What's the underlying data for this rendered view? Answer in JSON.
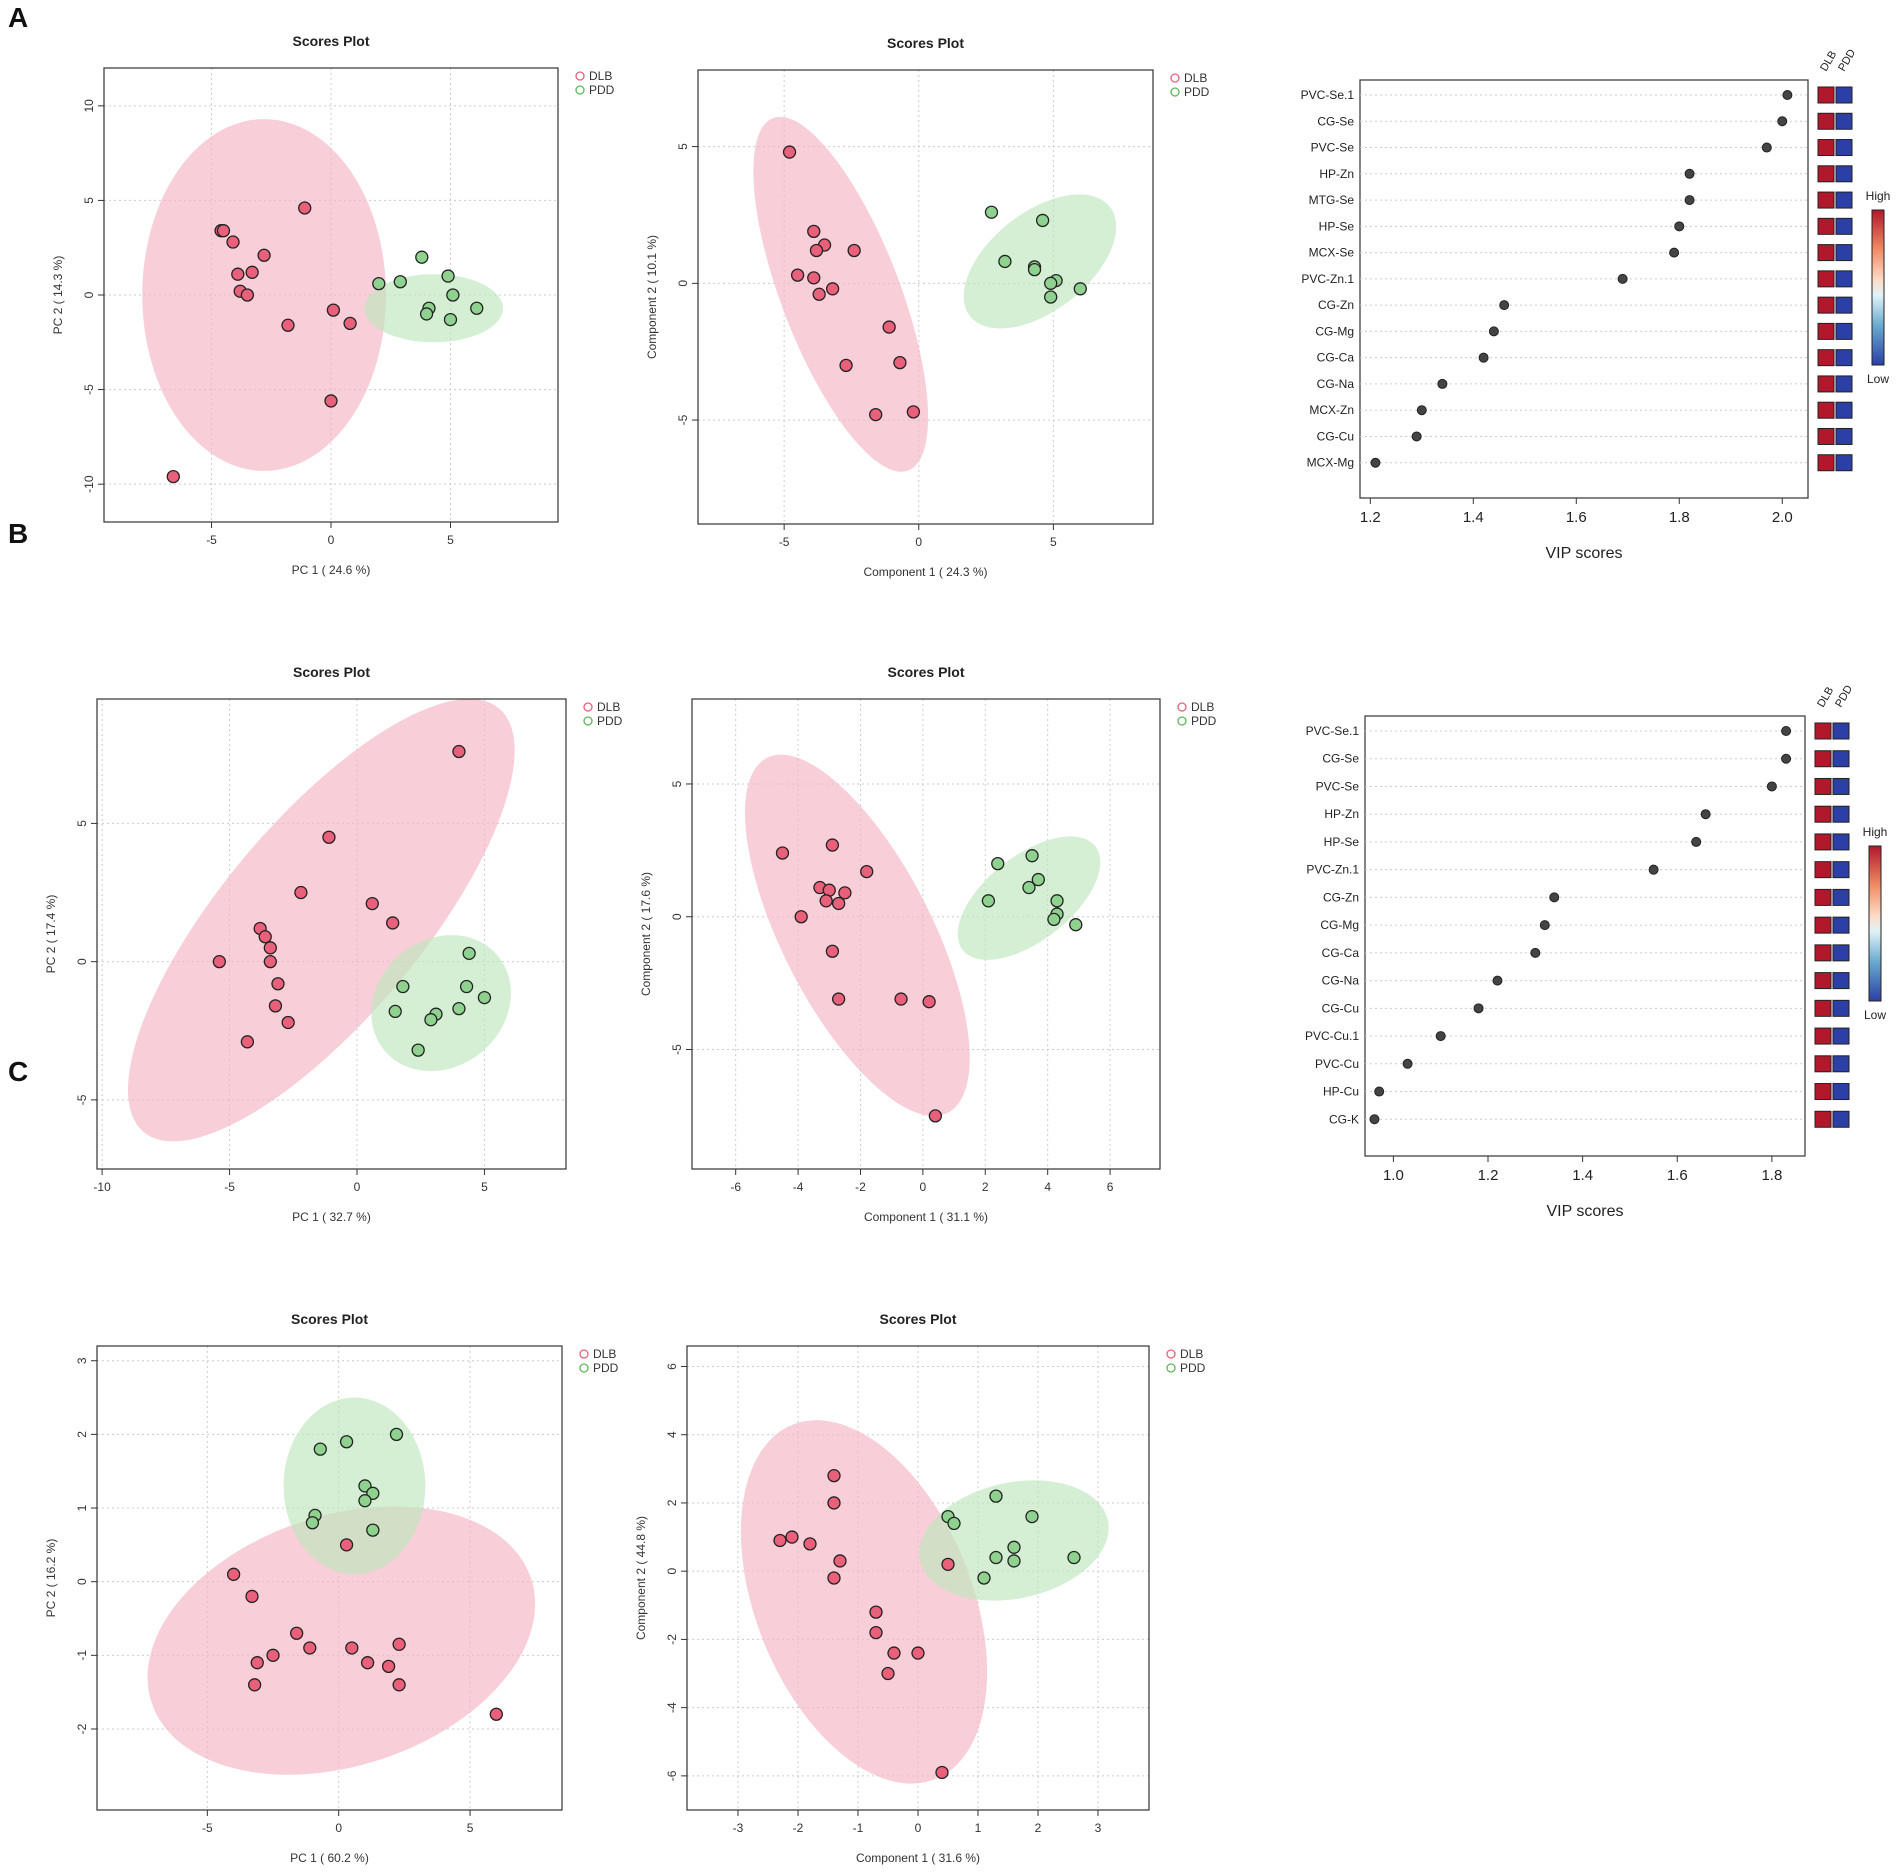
{
  "panel_labels": [
    "A",
    "B",
    "C"
  ],
  "colors": {
    "dlb_fill": "#e8607a",
    "dlb_ellipse": "#f4b6c3",
    "pdd_fill": "#8fd18f",
    "pdd_ellipse": "#bfe6bf",
    "point_stroke": "#222222",
    "vip_point": "#444444",
    "heat_high": "#b2182b",
    "heat_low": "#2c3fa6",
    "grid": "#cccccc"
  },
  "chart_data": [
    {
      "id": "A-pca",
      "type": "scatter",
      "title": "Scores Plot",
      "xlabel": "PC 1 ( 24.6 %)",
      "ylabel": "PC 2 ( 14.3 %)",
      "xlim": [
        -9.5,
        9.5
      ],
      "ylim": [
        -12,
        12
      ],
      "xticks": [
        -5,
        0,
        5
      ],
      "yticks": [
        -10,
        -5,
        0,
        5,
        10
      ],
      "legend": [
        "DLB",
        "PDD"
      ],
      "series": [
        {
          "name": "DLB",
          "points": [
            [
              -4.6,
              3.4
            ],
            [
              -4.5,
              3.4
            ],
            [
              -4.1,
              2.8
            ],
            [
              -2.8,
              2.1
            ],
            [
              -3.9,
              1.1
            ],
            [
              -3.3,
              1.2
            ],
            [
              -3.8,
              0.2
            ],
            [
              -3.5,
              0.0
            ],
            [
              -1.1,
              4.6
            ],
            [
              -1.8,
              -1.6
            ],
            [
              0.1,
              -0.8
            ],
            [
              0.8,
              -1.5
            ],
            [
              0,
              -5.6
            ],
            [
              -6.6,
              -9.6
            ]
          ],
          "ellipse": {
            "cx": -2.8,
            "cy": 0,
            "rx": 5.1,
            "ry": 9.3,
            "angle": 0
          }
        },
        {
          "name": "PDD",
          "points": [
            [
              2,
              0.6
            ],
            [
              2.9,
              0.7
            ],
            [
              3.8,
              2.0
            ],
            [
              4.9,
              1.0
            ],
            [
              5.1,
              0
            ],
            [
              4.1,
              -0.7
            ],
            [
              4.0,
              -1.0
            ],
            [
              5.0,
              -1.3
            ],
            [
              6.1,
              -0.7
            ]
          ],
          "ellipse": {
            "cx": 4.3,
            "cy": -0.7,
            "rx": 2.9,
            "ry": 1.8,
            "angle": 0
          }
        }
      ]
    },
    {
      "id": "A-plsda",
      "type": "scatter",
      "title": "Scores Plot",
      "xlabel": "Component 1 ( 24.3 %)",
      "ylabel": "Component 2 ( 10.1 %)",
      "xlim": [
        -8.2,
        8.7
      ],
      "ylim": [
        -8.8,
        7.8
      ],
      "xticks": [
        -5,
        0,
        5
      ],
      "yticks": [
        -5,
        0,
        5
      ],
      "legend": [
        "DLB",
        "PDD"
      ],
      "series": [
        {
          "name": "DLB",
          "points": [
            [
              -4.8,
              4.8
            ],
            [
              -3.9,
              1.9
            ],
            [
              -3.5,
              1.4
            ],
            [
              -3.8,
              1.2
            ],
            [
              -2.4,
              1.2
            ],
            [
              -4.5,
              0.3
            ],
            [
              -3.9,
              0.2
            ],
            [
              -3.2,
              -0.2
            ],
            [
              -3.7,
              -0.4
            ],
            [
              -1.1,
              -1.6
            ],
            [
              -0.7,
              -2.9
            ],
            [
              -2.7,
              -3.0
            ],
            [
              -1.6,
              -4.8
            ],
            [
              -0.2,
              -4.7
            ]
          ],
          "ellipse": {
            "cx": -2.9,
            "cy": -0.4,
            "rx": 2.2,
            "ry": 6.9,
            "angle": -21
          }
        },
        {
          "name": "PDD",
          "points": [
            [
              2.7,
              2.6
            ],
            [
              4.6,
              2.3
            ],
            [
              3.2,
              0.8
            ],
            [
              4.3,
              0.6
            ],
            [
              4.3,
              0.5
            ],
            [
              5.1,
              0.1
            ],
            [
              4.9,
              0.0
            ],
            [
              6.0,
              -0.2
            ],
            [
              4.9,
              -0.5
            ]
          ],
          "ellipse": {
            "cx": 4.5,
            "cy": 0.8,
            "rx": 3.3,
            "ry": 1.8,
            "angle": -38
          }
        }
      ]
    },
    {
      "id": "A-vip",
      "type": "dot",
      "xlabel": "VIP scores",
      "xlim": [
        1.18,
        2.05
      ],
      "xticks": [
        "1.2",
        "1.4",
        "1.6",
        "1.8",
        "2.0"
      ],
      "groups": [
        "DLB",
        "PDD"
      ],
      "scale_high": "High",
      "scale_low": "Low",
      "features": [
        "PVC-Se.1",
        "CG-Se",
        "PVC-Se",
        "HP-Zn",
        "MTG-Se",
        "HP-Se",
        "MCX-Se",
        "PVC-Zn.1",
        "CG-Zn",
        "CG-Mg",
        "CG-Ca",
        "CG-Na",
        "MCX-Zn",
        "CG-Cu",
        "MCX-Mg"
      ],
      "values": [
        2.01,
        2.0,
        1.97,
        1.82,
        1.82,
        1.8,
        1.79,
        1.69,
        1.46,
        1.44,
        1.42,
        1.34,
        1.3,
        1.29,
        1.21
      ]
    },
    {
      "id": "B-pca",
      "type": "scatter",
      "title": "Scores Plot",
      "xlabel": "PC 1 ( 32.7 %)",
      "ylabel": "PC 2 ( 17.4 %)",
      "xlim": [
        -10.2,
        8.2
      ],
      "ylim": [
        -7.5,
        9.5
      ],
      "xticks": [
        -10,
        -5,
        0,
        5
      ],
      "yticks": [
        -5,
        0,
        5
      ],
      "legend": [
        "DLB",
        "PDD"
      ],
      "series": [
        {
          "name": "DLB",
          "points": [
            [
              4.0,
              7.6
            ],
            [
              -1.1,
              4.5
            ],
            [
              -2.2,
              2.5
            ],
            [
              0.6,
              2.1
            ],
            [
              1.4,
              1.4
            ],
            [
              -3.8,
              1.2
            ],
            [
              -3.6,
              0.9
            ],
            [
              -3.4,
              0.5
            ],
            [
              -5.4,
              0
            ],
            [
              -3.4,
              0
            ],
            [
              -3.1,
              -0.8
            ],
            [
              -3.2,
              -1.6
            ],
            [
              -2.7,
              -2.2
            ],
            [
              -4.3,
              -2.9
            ]
          ],
          "ellipse": {
            "cx": -1.4,
            "cy": 1.5,
            "rx": 3.9,
            "ry": 10.0,
            "angle": 40
          }
        },
        {
          "name": "PDD",
          "points": [
            [
              4.4,
              0.3
            ],
            [
              1.8,
              -0.9
            ],
            [
              4.3,
              -0.9
            ],
            [
              5.0,
              -1.3
            ],
            [
              4.0,
              -1.7
            ],
            [
              3.1,
              -1.9
            ],
            [
              1.5,
              -1.8
            ],
            [
              2.9,
              -2.1
            ],
            [
              2.4,
              -3.2
            ]
          ],
          "ellipse": {
            "cx": 3.3,
            "cy": -1.5,
            "rx": 2.9,
            "ry": 2.3,
            "angle": -40
          }
        }
      ]
    },
    {
      "id": "B-plsda",
      "type": "scatter",
      "title": "Scores Plot",
      "xlabel": "Component 1 ( 31.1 %)",
      "ylabel": "Component 2 ( 17.6 %)",
      "xlim": [
        -7.4,
        7.6
      ],
      "ylim": [
        -9.5,
        8.2
      ],
      "xticks": [
        -6,
        -4,
        -2,
        0,
        2,
        4,
        6
      ],
      "yticks": [
        -5,
        0,
        5
      ],
      "legend": [
        "DLB",
        "PDD"
      ],
      "series": [
        {
          "name": "DLB",
          "points": [
            [
              -4.5,
              2.4
            ],
            [
              -2.9,
              2.7
            ],
            [
              -1.8,
              1.7
            ],
            [
              -3.3,
              1.1
            ],
            [
              -3.0,
              1.0
            ],
            [
              -2.5,
              0.9
            ],
            [
              -3.1,
              0.6
            ],
            [
              -2.7,
              0.5
            ],
            [
              -3.9,
              0.0
            ],
            [
              -2.9,
              -1.3
            ],
            [
              -2.7,
              -3.1
            ],
            [
              -0.7,
              -3.1
            ],
            [
              0.2,
              -3.2
            ],
            [
              0.4,
              -7.5
            ]
          ],
          "ellipse": {
            "cx": -2.1,
            "cy": -0.7,
            "rx": 2.4,
            "ry": 7.5,
            "angle": -27
          }
        },
        {
          "name": "PDD",
          "points": [
            [
              2.4,
              2.0
            ],
            [
              3.5,
              2.3
            ],
            [
              2.1,
              0.6
            ],
            [
              3.4,
              1.1
            ],
            [
              3.7,
              1.4
            ],
            [
              4.3,
              0.6
            ],
            [
              4.3,
              0.1
            ],
            [
              4.2,
              -0.1
            ],
            [
              4.9,
              -0.3
            ]
          ],
          "ellipse": {
            "cx": 3.4,
            "cy": 0.7,
            "rx": 2.7,
            "ry": 1.6,
            "angle": -38
          }
        }
      ]
    },
    {
      "id": "B-vip",
      "type": "dot",
      "xlabel": "VIP scores",
      "xlim": [
        0.94,
        1.87
      ],
      "xticks": [
        "1.0",
        "1.2",
        "1.4",
        "1.6",
        "1.8"
      ],
      "groups": [
        "DLB",
        "PDD"
      ],
      "scale_high": "High",
      "scale_low": "Low",
      "features": [
        "PVC-Se.1",
        "CG-Se",
        "PVC-Se",
        "HP-Zn",
        "HP-Se",
        "PVC-Zn.1",
        "CG-Zn",
        "CG-Mg",
        "CG-Ca",
        "CG-Na",
        "CG-Cu",
        "PVC-Cu.1",
        "PVC-Cu",
        "HP-Cu",
        "CG-K"
      ],
      "values": [
        1.83,
        1.83,
        1.8,
        1.66,
        1.64,
        1.55,
        1.34,
        1.32,
        1.3,
        1.22,
        1.18,
        1.1,
        1.03,
        0.97,
        0.96
      ]
    },
    {
      "id": "C-pca",
      "type": "scatter",
      "title": "Scores Plot",
      "xlabel": "PC 1 ( 60.2 %)",
      "ylabel": "PC 2 ( 16.2 %)",
      "xlim": [
        -9.2,
        8.5
      ],
      "ylim": [
        -3.1,
        3.2
      ],
      "xticks": [
        -5,
        0,
        5
      ],
      "yticks": [
        -2,
        -1,
        0,
        1,
        2,
        3
      ],
      "legend": [
        "DLB",
        "PDD"
      ],
      "series": [
        {
          "name": "DLB",
          "points": [
            [
              -4.0,
              0.1
            ],
            [
              -3.3,
              -0.2
            ],
            [
              0.3,
              0.5
            ],
            [
              -1.6,
              -0.7
            ],
            [
              -1.1,
              -0.9
            ],
            [
              -3.1,
              -1.1
            ],
            [
              -2.5,
              -1.0
            ],
            [
              0.5,
              -0.9
            ],
            [
              1.1,
              -1.1
            ],
            [
              2.3,
              -0.85
            ],
            [
              1.9,
              -1.15
            ],
            [
              2.3,
              -1.4
            ],
            [
              -3.2,
              -1.4
            ],
            [
              6.0,
              -1.8
            ]
          ],
          "ellipse": {
            "cx": 0.1,
            "cy": -0.8,
            "rx": 7.6,
            "ry": 1.7,
            "angle": -18
          }
        },
        {
          "name": "PDD",
          "points": [
            [
              2.2,
              2.0
            ],
            [
              0.3,
              1.9
            ],
            [
              -0.7,
              1.8
            ],
            [
              1.0,
              1.3
            ],
            [
              1.3,
              1.2
            ],
            [
              1.0,
              1.1
            ],
            [
              -0.9,
              0.9
            ],
            [
              -1.0,
              0.8
            ],
            [
              1.3,
              0.7
            ]
          ],
          "ellipse": {
            "cx": 0.6,
            "cy": 1.3,
            "rx": 2.7,
            "ry": 1.2,
            "angle": 0
          }
        }
      ]
    },
    {
      "id": "C-plsda",
      "type": "scatter",
      "title": "Scores Plot",
      "xlabel": "Component 1 ( 31.6 %)",
      "ylabel": "Component 2 ( 44.8 %)",
      "xlim": [
        -3.85,
        3.85
      ],
      "ylim": [
        -7.0,
        6.6
      ],
      "xticks": [
        -3,
        -2,
        -1,
        0,
        1,
        2,
        3
      ],
      "yticks": [
        -6,
        -4,
        -2,
        0,
        2,
        4,
        6
      ],
      "legend": [
        "DLB",
        "PDD"
      ],
      "series": [
        {
          "name": "DLB",
          "points": [
            [
              -1.4,
              2.8
            ],
            [
              -1.4,
              2.0
            ],
            [
              -2.3,
              0.9
            ],
            [
              -2.1,
              1.0
            ],
            [
              -1.8,
              0.8
            ],
            [
              -1.3,
              0.3
            ],
            [
              -1.4,
              -0.2
            ],
            [
              -0.7,
              -1.2
            ],
            [
              -0.7,
              -1.8
            ],
            [
              -0.4,
              -2.4
            ],
            [
              -0.5,
              -3.0
            ],
            [
              0,
              -2.4
            ],
            [
              0.5,
              0.2
            ],
            [
              0.4,
              -5.9
            ]
          ],
          "ellipse": {
            "cx": -0.9,
            "cy": -0.9,
            "rx": 1.8,
            "ry": 5.6,
            "angle": -22
          }
        },
        {
          "name": "PDD",
          "points": [
            [
              1.3,
              2.2
            ],
            [
              1.9,
              1.6
            ],
            [
              0.5,
              1.6
            ],
            [
              0.6,
              1.4
            ],
            [
              1.6,
              0.7
            ],
            [
              1.3,
              0.4
            ],
            [
              1.6,
              0.3
            ],
            [
              2.6,
              0.4
            ],
            [
              1.1,
              -0.2
            ]
          ],
          "ellipse": {
            "cx": 1.6,
            "cy": 0.9,
            "rx": 1.6,
            "ry": 1.7,
            "angle": -12
          }
        }
      ]
    }
  ]
}
